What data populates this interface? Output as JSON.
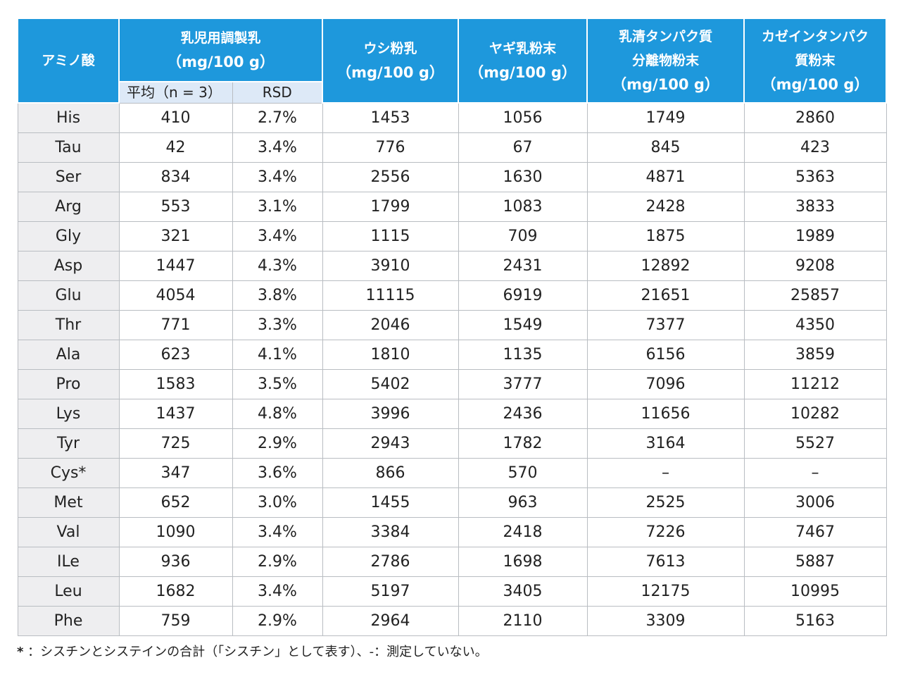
{
  "header": {
    "amino_acid": "アミノ酸",
    "infant_formula": {
      "name": "乳児用調製乳",
      "unit": "（mg/100 g）",
      "mean": "平均（n = 3）",
      "rsd": "RSD"
    },
    "cow_milk": {
      "name": "ウシ粉乳",
      "unit": "（mg/100 g）"
    },
    "goat_milk": {
      "name": "ヤギ乳粉末",
      "unit": "（mg/100 g）"
    },
    "whey": {
      "line1": "乳清タンパク質",
      "line2": "分離物粉末",
      "unit": "（mg/100 g）"
    },
    "casein": {
      "line1": "カゼインタンパク",
      "line2": "質粉末",
      "unit": "（mg/100 g）"
    }
  },
  "rows": [
    [
      "His",
      "410",
      "2.7%",
      "1453",
      "1056",
      "1749",
      "2860"
    ],
    [
      "Tau",
      "42",
      "3.4%",
      "776",
      "67",
      "845",
      "423"
    ],
    [
      "Ser",
      "834",
      "3.4%",
      "2556",
      "1630",
      "4871",
      "5363"
    ],
    [
      "Arg",
      "553",
      "3.1%",
      "1799",
      "1083",
      "2428",
      "3833"
    ],
    [
      "Gly",
      "321",
      "3.4%",
      "1115",
      "709",
      "1875",
      "1989"
    ],
    [
      "Asp",
      "1447",
      "4.3%",
      "3910",
      "2431",
      "12892",
      "9208"
    ],
    [
      "Glu",
      "4054",
      "3.8%",
      "11115",
      "6919",
      "21651",
      "25857"
    ],
    [
      "Thr",
      "771",
      "3.3%",
      "2046",
      "1549",
      "7377",
      "4350"
    ],
    [
      "Ala",
      "623",
      "4.1%",
      "1810",
      "1135",
      "6156",
      "3859"
    ],
    [
      "Pro",
      "1583",
      "3.5%",
      "5402",
      "3777",
      "7096",
      "11212"
    ],
    [
      "Lys",
      "1437",
      "4.8%",
      "3996",
      "2436",
      "11656",
      "10282"
    ],
    [
      "Tyr",
      "725",
      "2.9%",
      "2943",
      "1782",
      "3164",
      "5527"
    ],
    [
      "Cys*",
      "347",
      "3.6%",
      "866",
      "570",
      "–",
      "–"
    ],
    [
      "Met",
      "652",
      "3.0%",
      "1455",
      "963",
      "2525",
      "3006"
    ],
    [
      "Val",
      "1090",
      "3.4%",
      "3384",
      "2418",
      "7226",
      "7467"
    ],
    [
      "ILe",
      "936",
      "2.9%",
      "2786",
      "1698",
      "7613",
      "5887"
    ],
    [
      "Leu",
      "1682",
      "3.4%",
      "5197",
      "3405",
      "12175",
      "10995"
    ],
    [
      "Phe",
      "759",
      "2.9%",
      "2964",
      "2110",
      "3309",
      "5163"
    ]
  ],
  "footnote": {
    "mark": "*",
    "text": "：シスチンとシステインの合計（「シスチン」として表す）、-：測定していない。"
  }
}
